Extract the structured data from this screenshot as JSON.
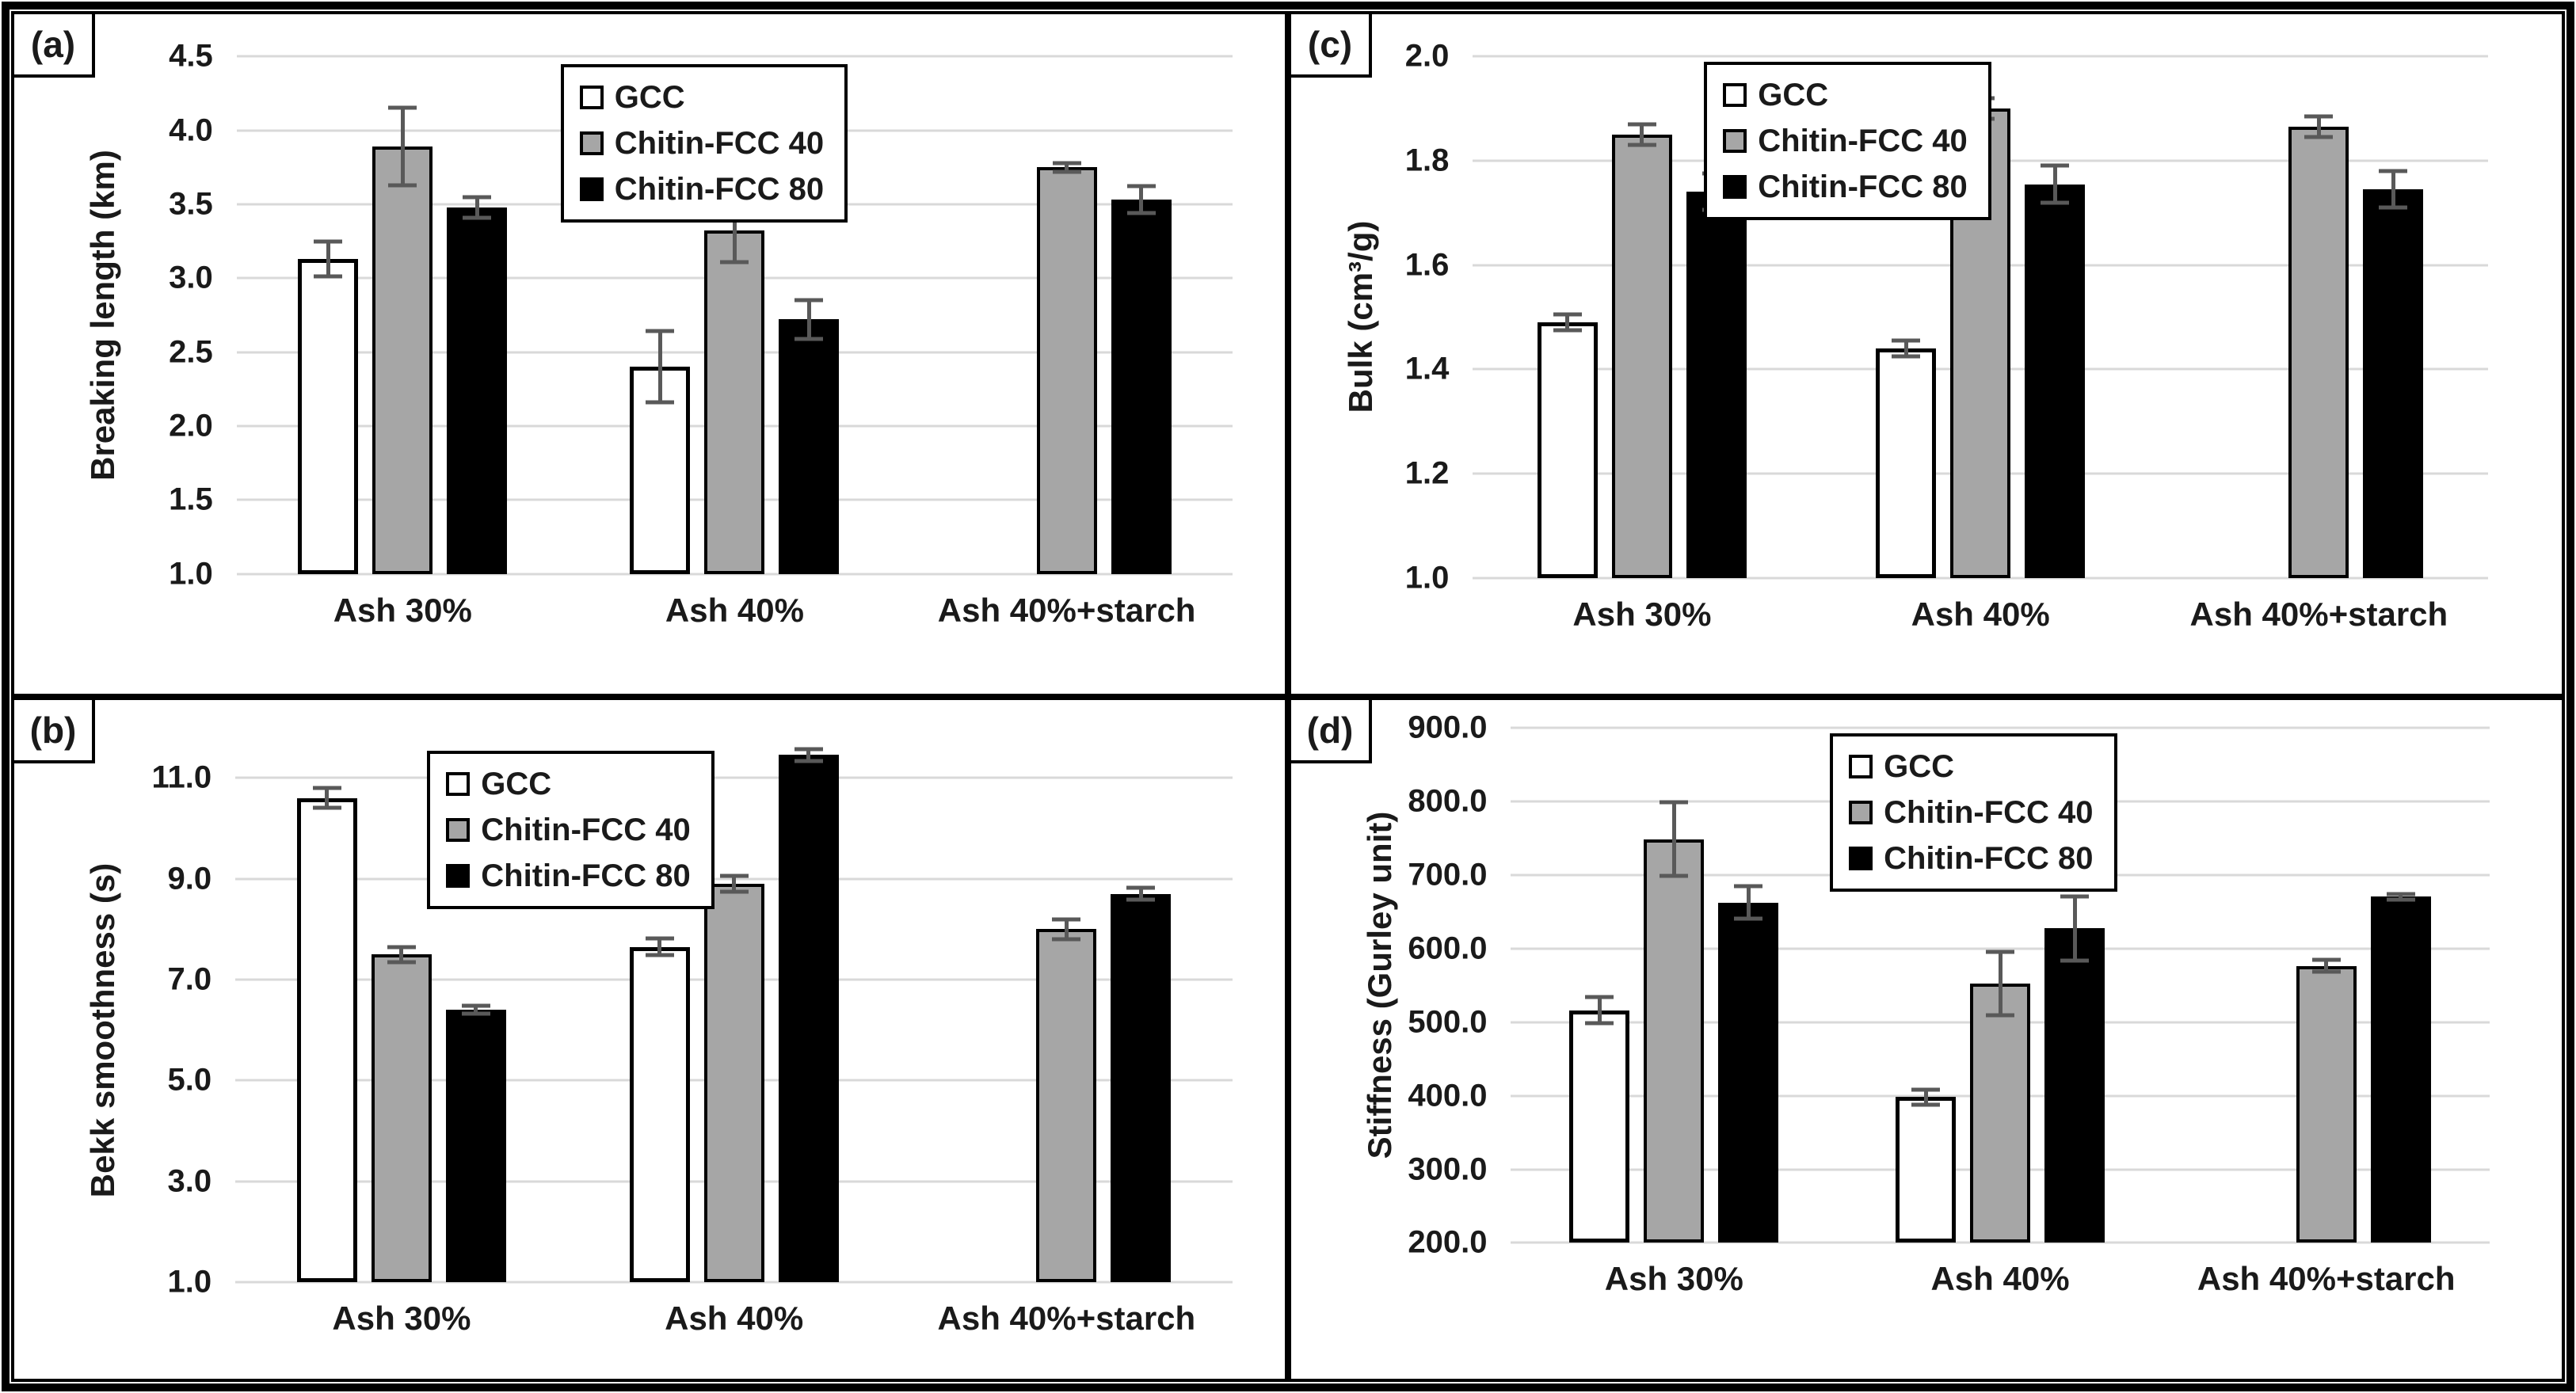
{
  "figure": {
    "background": "#ffffff",
    "outer_border_color": "#000000",
    "panel_border_color": "#000000",
    "grid_color": "#d9d9d9",
    "error_bar_color": "#595959"
  },
  "series_styles": [
    {
      "name": "GCC",
      "fill": "#ffffff",
      "border": "#000000",
      "border_px": 5
    },
    {
      "name": "Chitin-FCC 40",
      "fill": "#a6a6a6",
      "border": "#000000",
      "border_px": 4
    },
    {
      "name": "Chitin-FCC 80",
      "fill": "#000000",
      "border": "#000000",
      "border_px": 0
    }
  ],
  "chart_data": [
    {
      "id": "a",
      "type": "bar",
      "panel_label": "(a)",
      "title": "",
      "ylabel": "Breaking length (km)",
      "categories": [
        "Ash 30%",
        "Ash 40%",
        "Ash 40%+starch"
      ],
      "series": [
        {
          "name": "GCC",
          "values": [
            3.13,
            2.4,
            null
          ],
          "errors": [
            0.12,
            0.24,
            null
          ]
        },
        {
          "name": "Chitin-FCC 40",
          "values": [
            3.89,
            3.32,
            3.75
          ],
          "errors": [
            0.26,
            0.21,
            0.03
          ]
        },
        {
          "name": "Chitin-FCC 80",
          "values": [
            3.48,
            2.72,
            3.53
          ],
          "errors": [
            0.07,
            0.13,
            0.09
          ]
        }
      ],
      "ylim": [
        1.0,
        4.5
      ],
      "ystep": 0.5,
      "tick_decimals": 1,
      "grid": true,
      "legend_position": "inside-top-center-right"
    },
    {
      "id": "b",
      "type": "bar",
      "panel_label": "(b)",
      "title": "",
      "ylabel": "Bekk smoothness (s)",
      "categories": [
        "Ash 30%",
        "Ash 40%",
        "Ash 40%+starch"
      ],
      "series": [
        {
          "name": "GCC",
          "values": [
            10.6,
            7.65,
            null
          ],
          "errors": [
            0.2,
            0.16,
            null
          ]
        },
        {
          "name": "Chitin-FCC 40",
          "values": [
            7.5,
            8.9,
            8.0
          ],
          "errors": [
            0.15,
            0.16,
            0.2
          ]
        },
        {
          "name": "Chitin-FCC 80",
          "values": [
            6.4,
            11.45,
            8.7
          ],
          "errors": [
            0.08,
            0.12,
            0.12
          ]
        }
      ],
      "ylim": [
        1.0,
        11.0
      ],
      "ystep": 2.0,
      "tick_decimals": 1,
      "grid": true,
      "legend_position": "inside-top-center"
    },
    {
      "id": "c",
      "type": "bar",
      "panel_label": "(c)",
      "title": "",
      "ylabel": "Bulk (cm³/g)",
      "categories": [
        "Ash 30%",
        "Ash 40%",
        "Ash 40%+starch"
      ],
      "series": [
        {
          "name": "GCC",
          "values": [
            1.49,
            1.44,
            null
          ],
          "errors": [
            0.015,
            0.015,
            null
          ]
        },
        {
          "name": "Chitin-FCC 40",
          "values": [
            1.85,
            1.9,
            1.865
          ],
          "errors": [
            0.02,
            0.02,
            0.02
          ]
        },
        {
          "name": "Chitin-FCC 80",
          "values": [
            1.74,
            1.755,
            1.745
          ],
          "errors": [
            0.035,
            0.035,
            0.035
          ]
        }
      ],
      "ylim": [
        1.0,
        2.0
      ],
      "ystep": 0.2,
      "tick_decimals": 1,
      "grid": true,
      "legend_position": "inside-top-center"
    },
    {
      "id": "d",
      "type": "bar",
      "panel_label": "(d)",
      "title": "",
      "ylabel": "Stiffness (Gurley unit)",
      "categories": [
        "Ash 30%",
        "Ash 40%",
        "Ash 40%+starch"
      ],
      "series": [
        {
          "name": "GCC",
          "values": [
            516,
            398,
            null
          ],
          "errors": [
            18,
            10,
            null
          ]
        },
        {
          "name": "Chitin-FCC 40",
          "values": [
            748,
            552,
            576
          ],
          "errors": [
            50,
            43,
            8
          ]
        },
        {
          "name": "Chitin-FCC 80",
          "values": [
            662,
            627,
            670
          ],
          "errors": [
            22,
            44,
            4
          ]
        }
      ],
      "ylim": [
        200.0,
        900.0
      ],
      "ystep": 100.0,
      "tick_decimals": 1,
      "grid": true,
      "legend_position": "inside-top-center-right"
    }
  ]
}
